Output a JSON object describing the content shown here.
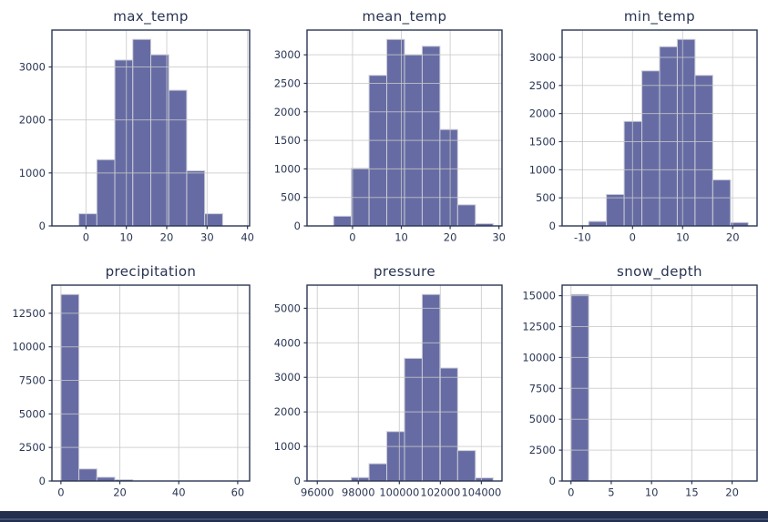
{
  "figure": {
    "kind": "pandas-hist-grid",
    "rows": 2,
    "cols": 3,
    "background": "#FFFFFF"
  },
  "style": {
    "bar_fill": "#666CA3",
    "bar_edge": "#CBCCD9",
    "grid_color": "#C8C8C8",
    "spine_color": "#2A3654",
    "text_color": "#2A3654",
    "footer_color": "#232F4C",
    "footer_line_color": "#3E5177"
  },
  "chart_data": [
    {
      "type": "bar",
      "subtype": "histogram",
      "title": "max_temp",
      "bin_edges": [
        -6.2,
        -1.75,
        2.7,
        7.15,
        11.6,
        16.05,
        20.5,
        24.95,
        29.4,
        33.85,
        38.3
      ],
      "counts": [
        0,
        230,
        1250,
        3130,
        3520,
        3230,
        2560,
        1040,
        230,
        0
      ],
      "xlim": [
        -8.43,
        40.53
      ],
      "ylim": [
        0,
        3696
      ],
      "xticks": [
        0,
        10,
        20,
        30,
        40
      ],
      "xtick_labels": [
        "0",
        "10",
        "20",
        "30",
        "40"
      ],
      "yticks": [
        0,
        1000,
        2000,
        3000
      ],
      "ytick_labels": [
        "0",
        "1000",
        "2000",
        "3000"
      ],
      "grid": true
    },
    {
      "type": "bar",
      "subtype": "histogram",
      "title": "mean_temp",
      "bin_edges": [
        -7.5,
        -3.87,
        -0.24,
        3.39,
        7.02,
        10.65,
        14.28,
        17.91,
        21.54,
        25.17,
        28.8
      ],
      "counts": [
        0,
        170,
        1010,
        2640,
        3270,
        3000,
        3150,
        1690,
        370,
        40
      ],
      "xlim": [
        -9.32,
        30.62
      ],
      "ylim": [
        0,
        3434
      ],
      "xticks": [
        0,
        10,
        20,
        30
      ],
      "xtick_labels": [
        "0",
        "10",
        "20",
        "30"
      ],
      "yticks": [
        0,
        500,
        1000,
        1500,
        2000,
        2500,
        3000
      ],
      "ytick_labels": [
        "0",
        "500",
        "1000",
        "1500",
        "2000",
        "2500",
        "3000"
      ],
      "grid": true
    },
    {
      "type": "bar",
      "subtype": "histogram",
      "title": "min_temp",
      "bin_edges": [
        -12.3,
        -8.76,
        -5.22,
        -1.68,
        1.86,
        5.4,
        8.94,
        12.48,
        16.02,
        19.56,
        23.1
      ],
      "counts": [
        0,
        80,
        560,
        1860,
        2760,
        3190,
        3320,
        2680,
        820,
        60
      ],
      "xlim": [
        -14.07,
        24.87
      ],
      "ylim": [
        0,
        3486
      ],
      "xticks": [
        -10,
        0,
        10,
        20
      ],
      "xtick_labels": [
        "-10",
        "0",
        "10",
        "20"
      ],
      "yticks": [
        0,
        500,
        1000,
        1500,
        2000,
        2500,
        3000
      ],
      "ytick_labels": [
        "0",
        "500",
        "1000",
        "1500",
        "2000",
        "2500",
        "3000"
      ],
      "grid": true
    },
    {
      "type": "bar",
      "subtype": "histogram",
      "title": "precipitation",
      "bin_edges": [
        0,
        6.1,
        12.2,
        18.3,
        24.4,
        30.5,
        36.6,
        42.7,
        48.8,
        54.9,
        61.0
      ],
      "counts": [
        13900,
        900,
        280,
        100,
        0,
        0,
        0,
        0,
        0,
        0
      ],
      "xlim": [
        -3.05,
        64.05
      ],
      "ylim": [
        0,
        14595
      ],
      "xticks": [
        0,
        20,
        40,
        60
      ],
      "xtick_labels": [
        "0",
        "20",
        "40",
        "60"
      ],
      "yticks": [
        0,
        2500,
        5000,
        7500,
        10000,
        12500
      ],
      "ytick_labels": [
        "0",
        "2500",
        "5000",
        "7500",
        "10000",
        "12500"
      ],
      "grid": true
    },
    {
      "type": "bar",
      "subtype": "histogram",
      "title": "pressure",
      "bin_edges": [
        95932,
        96796,
        97660,
        98524,
        99388,
        100252,
        101116,
        101980,
        102844,
        103708,
        104572
      ],
      "counts": [
        0,
        0,
        100,
        500,
        1430,
        3550,
        5400,
        3270,
        880,
        90
      ],
      "xlim": [
        95500,
        105004
      ],
      "ylim": [
        0,
        5670
      ],
      "xticks": [
        96000,
        98000,
        100000,
        102000,
        104000
      ],
      "xtick_labels": [
        "96000",
        "98000",
        "100000",
        "102000",
        "104000"
      ],
      "yticks": [
        0,
        1000,
        2000,
        3000,
        4000,
        5000
      ],
      "ytick_labels": [
        "0",
        "1000",
        "2000",
        "3000",
        "4000",
        "5000"
      ],
      "grid": true
    },
    {
      "type": "bar",
      "subtype": "histogram",
      "title": "snow_depth",
      "bin_edges": [
        0,
        2.2,
        4.4,
        6.6,
        8.8,
        11.0,
        13.2,
        15.4,
        17.6,
        19.8,
        22.0
      ],
      "counts": [
        15100,
        0,
        0,
        0,
        0,
        0,
        0,
        0,
        0,
        0
      ],
      "xlim": [
        -1.1,
        23.1
      ],
      "ylim": [
        0,
        15855
      ],
      "xticks": [
        0,
        5,
        10,
        15,
        20
      ],
      "xtick_labels": [
        "0",
        "5",
        "10",
        "15",
        "20"
      ],
      "yticks": [
        0,
        2500,
        5000,
        7500,
        10000,
        12500,
        15000
      ],
      "ytick_labels": [
        "0",
        "2500",
        "5000",
        "7500",
        "10000",
        "12500",
        "15000"
      ],
      "grid": true
    }
  ]
}
